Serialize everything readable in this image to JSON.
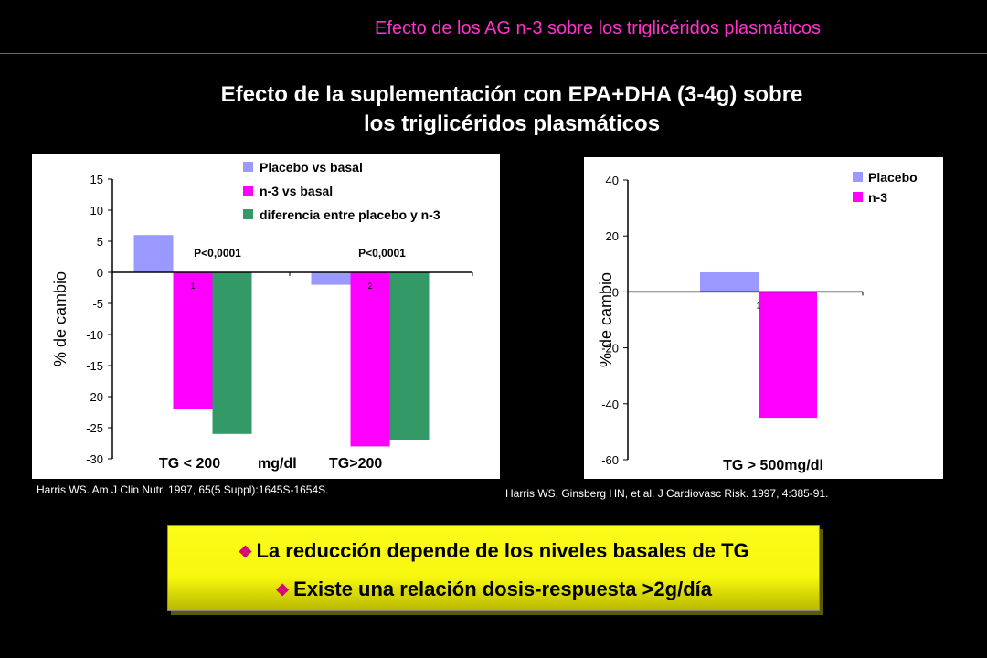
{
  "header": {
    "text": "Efecto de los AG n-3 sobre los triglicéridos plasmáticos"
  },
  "title": {
    "line1": "Efecto de la suplementación con EPA+DHA (3-4g) sobre",
    "line2": "los triglicéridos plasmáticos"
  },
  "colors": {
    "placebo": "#9999ff",
    "n3": "#ff00ff",
    "diff": "#339966",
    "header": "#ff33cc",
    "callout": "#ffff00"
  },
  "chart_data": [
    {
      "type": "bar",
      "categories": [
        "1",
        "2"
      ],
      "series": [
        {
          "name": "Placebo vs basal",
          "values": [
            6,
            -2
          ]
        },
        {
          "name": "n-3 vs basal",
          "values": [
            -22,
            -28
          ]
        },
        {
          "name": "diferencia entre placebo y n-3",
          "values": [
            -26,
            -27
          ]
        }
      ],
      "ylabel": "% de cambio",
      "ylim": [
        -30,
        15
      ],
      "yticks": [
        "15",
        "10",
        "5",
        "0",
        "-5",
        "-10",
        "-15",
        "-20",
        "-25",
        "-30"
      ],
      "annotations": [
        "P<0,0001",
        "P<0,0001"
      ],
      "xlabel_parts": [
        "TG < 200",
        "mg/dl",
        "TG>200"
      ],
      "legend": "top-right",
      "reference": "Harris WS. Am J Clin Nutr. 1997, 65(5 Suppl):1645S-1654S."
    },
    {
      "type": "bar",
      "categories": [
        "1"
      ],
      "series": [
        {
          "name": "Placebo",
          "values": [
            7
          ]
        },
        {
          "name": "n-3",
          "values": [
            -45
          ]
        }
      ],
      "ylabel": "% de cambio",
      "ylim": [
        -60,
        40
      ],
      "yticks": [
        "40",
        "20",
        "0",
        "-20",
        "-40",
        "-60"
      ],
      "xlabel": "TG > 500mg/dl",
      "legend": "top-right",
      "reference": "Harris WS, Ginsberg HN, et al. J Cardiovasc Risk. 1997, 4:385-91."
    }
  ],
  "callout": {
    "bullet": "❖",
    "line1": "La reducción depende de los niveles basales de TG",
    "line2": "Existe una relación dosis-respuesta >2g/día"
  }
}
